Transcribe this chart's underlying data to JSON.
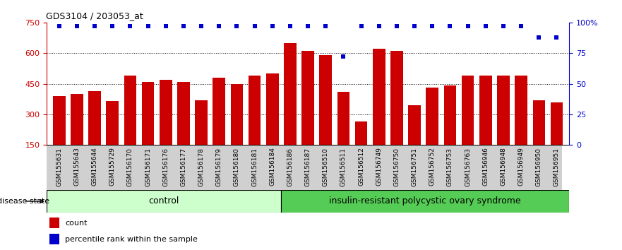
{
  "title": "GDS3104 / 203053_at",
  "samples": [
    "GSM155631",
    "GSM155643",
    "GSM155644",
    "GSM155729",
    "GSM156170",
    "GSM156171",
    "GSM156176",
    "GSM156177",
    "GSM156178",
    "GSM156179",
    "GSM156180",
    "GSM156181",
    "GSM156184",
    "GSM156186",
    "GSM156187",
    "GSM156510",
    "GSM156511",
    "GSM156512",
    "GSM156749",
    "GSM156750",
    "GSM156751",
    "GSM156752",
    "GSM156753",
    "GSM156763",
    "GSM156946",
    "GSM156948",
    "GSM156949",
    "GSM156950",
    "GSM156951"
  ],
  "counts": [
    390,
    400,
    415,
    365,
    490,
    460,
    470,
    460,
    370,
    480,
    450,
    490,
    500,
    650,
    610,
    590,
    410,
    265,
    620,
    610,
    345,
    430,
    440,
    490,
    490,
    490,
    490,
    370,
    360
  ],
  "percentile_ranks": [
    97,
    97,
    97,
    97,
    97,
    97,
    97,
    97,
    97,
    97,
    97,
    97,
    97,
    97,
    97,
    97,
    72,
    97,
    97,
    97,
    97,
    97,
    97,
    97,
    97,
    97,
    97,
    88,
    88
  ],
  "control_count": 13,
  "disease_label": "insulin-resistant polycystic ovary syndrome",
  "control_label": "control",
  "disease_state_label": "disease state",
  "bar_color": "#cc0000",
  "dot_color": "#0000cc",
  "ylim_left": [
    150,
    750
  ],
  "yticks_left": [
    150,
    300,
    450,
    600,
    750
  ],
  "ylim_right": [
    0,
    100
  ],
  "yticks_right": [
    0,
    25,
    50,
    75,
    100
  ],
  "control_bg": "#ccffcc",
  "disease_bg": "#55cc55",
  "tick_bg": "#d0d0d0",
  "legend_count_label": "count",
  "legend_pct_label": "percentile rank within the sample"
}
